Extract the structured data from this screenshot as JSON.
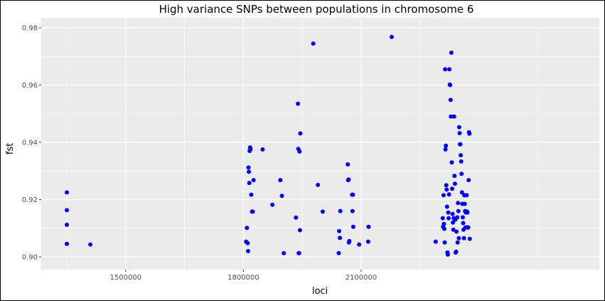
{
  "chart_data": {
    "type": "scatter",
    "title": "High variance SNPs between populations in chromosome 6",
    "xlabel": "loci",
    "ylabel": "fst",
    "xlim": [
      1350000,
      2640000
    ],
    "ylim": [
      0.8975,
      0.9815
    ],
    "x_ticks": [
      1500000,
      1800000,
      2100000
    ],
    "x_tick_labels": [
      "1500000",
      "1800000",
      "2100000"
    ],
    "y_ticks": [
      0.9,
      0.92,
      0.94,
      0.96,
      0.98
    ],
    "y_tick_labels": [
      "0.90",
      "0.92",
      "0.94",
      "0.96",
      "0.98"
    ],
    "grid": true,
    "colors": {
      "point": "#0000ff",
      "panel": "#ebebeb",
      "grid": "#ffffff"
    },
    "points": [
      [
        1350000,
        0.9225
      ],
      [
        1350000,
        0.9163
      ],
      [
        1350000,
        0.9112
      ],
      [
        1350000,
        0.9045
      ],
      [
        1410000,
        0.9043
      ],
      [
        1807000,
        0.9053
      ],
      [
        1809000,
        0.9101
      ],
      [
        1811000,
        0.9048
      ],
      [
        1812000,
        0.902
      ],
      [
        1813000,
        0.9312
      ],
      [
        1814000,
        0.9297
      ],
      [
        1815000,
        0.9258
      ],
      [
        1816000,
        0.937
      ],
      [
        1817000,
        0.9382
      ],
      [
        1818000,
        0.9375
      ],
      [
        1820000,
        0.9217
      ],
      [
        1822000,
        0.9158
      ],
      [
        1824000,
        0.9158
      ],
      [
        1826000,
        0.9268
      ],
      [
        1849000,
        0.9375
      ],
      [
        1874000,
        0.9182
      ],
      [
        1894000,
        0.9268
      ],
      [
        1898000,
        0.9213
      ],
      [
        1903000,
        0.9013
      ],
      [
        1934000,
        0.9137
      ],
      [
        1939000,
        0.9535
      ],
      [
        1940000,
        0.9377
      ],
      [
        1941000,
        0.9013
      ],
      [
        1942000,
        0.9013
      ],
      [
        1943000,
        0.9368
      ],
      [
        1944000,
        0.9093
      ],
      [
        1945000,
        0.9431
      ],
      [
        1978000,
        0.9745
      ],
      [
        1990000,
        0.9251
      ],
      [
        2002000,
        0.9158
      ],
      [
        2043000,
        0.9013
      ],
      [
        2044000,
        0.909
      ],
      [
        2046000,
        0.9066
      ],
      [
        2047000,
        0.916
      ],
      [
        2066000,
        0.9323
      ],
      [
        2067000,
        0.9268
      ],
      [
        2068000,
        0.927
      ],
      [
        2069000,
        0.905
      ],
      [
        2070000,
        0.9055
      ],
      [
        2077000,
        0.9217
      ],
      [
        2078000,
        0.916
      ],
      [
        2079000,
        0.9217
      ],
      [
        2080000,
        0.9105
      ],
      [
        2095000,
        0.9043
      ],
      [
        2118000,
        0.9053
      ],
      [
        2119000,
        0.9105
      ],
      [
        2178000,
        0.9768
      ],
      [
        2290000,
        0.9053
      ],
      [
        2308000,
        0.9135
      ],
      [
        2309000,
        0.9105
      ],
      [
        2310000,
        0.9215
      ],
      [
        2311000,
        0.9115
      ],
      [
        2312000,
        0.9098
      ],
      [
        2313000,
        0.905
      ],
      [
        2314000,
        0.9655
      ],
      [
        2315000,
        0.9375
      ],
      [
        2316000,
        0.9388
      ],
      [
        2317000,
        0.925
      ],
      [
        2318000,
        0.9235
      ],
      [
        2319000,
        0.9175
      ],
      [
        2320000,
        0.9015
      ],
      [
        2321000,
        0.9008
      ],
      [
        2322000,
        0.9155
      ],
      [
        2323000,
        0.9135
      ],
      [
        2324000,
        0.9218
      ],
      [
        2325000,
        0.9655
      ],
      [
        2326000,
        0.9602
      ],
      [
        2327000,
        0.96
      ],
      [
        2328000,
        0.9548
      ],
      [
        2329000,
        0.949
      ],
      [
        2330000,
        0.9713
      ],
      [
        2331000,
        0.933
      ],
      [
        2332000,
        0.9238
      ],
      [
        2333000,
        0.915
      ],
      [
        2334000,
        0.912
      ],
      [
        2335000,
        0.9095
      ],
      [
        2336000,
        0.9135
      ],
      [
        2337000,
        0.949
      ],
      [
        2338000,
        0.9283
      ],
      [
        2339000,
        0.9255
      ],
      [
        2340000,
        0.913
      ],
      [
        2341000,
        0.9015
      ],
      [
        2342000,
        0.9018
      ],
      [
        2343000,
        0.9088
      ],
      [
        2345000,
        0.9138
      ],
      [
        2346000,
        0.905
      ],
      [
        2347000,
        0.9188
      ],
      [
        2348000,
        0.916
      ],
      [
        2349000,
        0.9065
      ],
      [
        2350000,
        0.9453
      ],
      [
        2351000,
        0.9432
      ],
      [
        2352000,
        0.9393
      ],
      [
        2353000,
        0.9393
      ],
      [
        2354000,
        0.9355
      ],
      [
        2355000,
        0.9333
      ],
      [
        2356000,
        0.929
      ],
      [
        2357000,
        0.9225
      ],
      [
        2358000,
        0.9185
      ],
      [
        2359000,
        0.9138
      ],
      [
        2360000,
        0.9118
      ],
      [
        2361000,
        0.9095
      ],
      [
        2362000,
        0.9065
      ],
      [
        2363000,
        0.9215
      ],
      [
        2364000,
        0.9185
      ],
      [
        2365000,
        0.916
      ],
      [
        2366000,
        0.9103
      ],
      [
        2367000,
        0.9155
      ],
      [
        2368000,
        0.9103
      ],
      [
        2369000,
        0.9215
      ],
      [
        2370000,
        0.9158
      ],
      [
        2371000,
        0.9155
      ],
      [
        2372000,
        0.9102
      ],
      [
        2373000,
        0.9103
      ],
      [
        2374000,
        0.9268
      ],
      [
        2375000,
        0.9435
      ],
      [
        2376000,
        0.943
      ],
      [
        2377000,
        0.9063
      ]
    ]
  }
}
